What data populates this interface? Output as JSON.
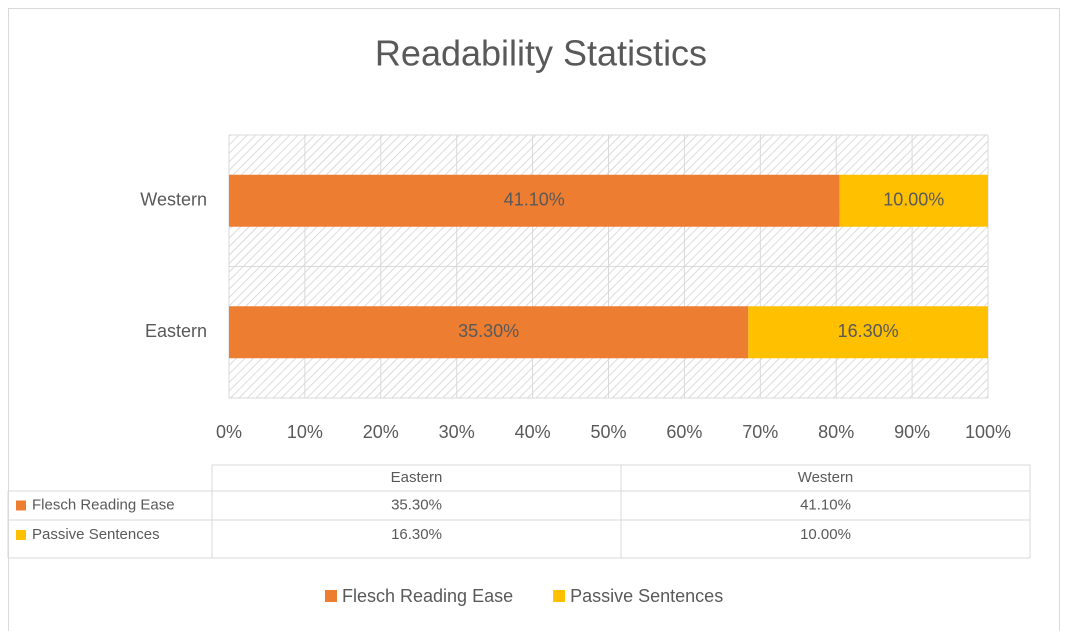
{
  "chart_data": {
    "type": "bar",
    "orientation": "horizontal",
    "stacking": "percent",
    "title": "Readability Statistics",
    "categories": [
      "Eastern",
      "Western"
    ],
    "series": [
      {
        "name": "Flesch Reading Ease",
        "color": "#ed7d31",
        "values": [
          35.3,
          41.1
        ],
        "value_labels": [
          "35.30%",
          "41.10%"
        ]
      },
      {
        "name": "Passive Sentences",
        "color": "#ffc000",
        "values": [
          16.3,
          10.0
        ],
        "value_labels": [
          "16.30%",
          "10.00%"
        ]
      }
    ],
    "xlim": [
      0,
      100
    ],
    "xticks": [
      {
        "value": 0,
        "label": "0%"
      },
      {
        "value": 10,
        "label": "10%"
      },
      {
        "value": 20,
        "label": "20%"
      },
      {
        "value": 30,
        "label": "30%"
      },
      {
        "value": 40,
        "label": "40%"
      },
      {
        "value": 50,
        "label": "50%"
      },
      {
        "value": 60,
        "label": "60%"
      },
      {
        "value": 70,
        "label": "70%"
      },
      {
        "value": 80,
        "label": "80%"
      },
      {
        "value": 90,
        "label": "90%"
      },
      {
        "value": 100,
        "label": "100%"
      }
    ],
    "grid": true,
    "data_table": true,
    "legend": "bottom"
  }
}
